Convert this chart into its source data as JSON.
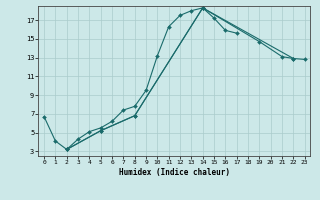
{
  "xlabel": "Humidex (Indice chaleur)",
  "bg_color": "#cce8e8",
  "grid_color": "#aacccc",
  "line_color": "#1a6b6b",
  "xlim": [
    -0.5,
    23.5
  ],
  "ylim": [
    2.5,
    18.5
  ],
  "yticks": [
    3,
    5,
    7,
    9,
    11,
    13,
    15,
    17
  ],
  "xticks": [
    0,
    1,
    2,
    3,
    4,
    5,
    6,
    7,
    8,
    9,
    10,
    11,
    12,
    13,
    14,
    15,
    16,
    17,
    18,
    19,
    20,
    21,
    22,
    23
  ],
  "s1x": [
    0,
    1,
    2,
    3,
    4,
    5,
    6,
    7,
    8,
    9,
    10,
    11,
    12,
    13,
    14,
    15,
    16,
    17
  ],
  "s1y": [
    6.7,
    4.1,
    3.2,
    4.3,
    5.1,
    5.5,
    6.2,
    7.4,
    7.8,
    9.5,
    13.2,
    16.3,
    17.5,
    18.0,
    18.3,
    17.2,
    15.9,
    15.6
  ],
  "s2x": [
    2,
    5,
    8,
    14,
    19,
    21,
    22,
    23
  ],
  "s2y": [
    3.2,
    5.2,
    6.8,
    18.3,
    14.7,
    13.1,
    12.9,
    12.8
  ],
  "s3x": [
    2,
    5,
    8,
    14,
    22
  ],
  "s3y": [
    3.2,
    5.2,
    6.8,
    18.3,
    12.9
  ],
  "xlabel_fontsize": 5.5,
  "tick_fontsize_x": 4.5,
  "tick_fontsize_y": 5.0,
  "linewidth": 0.8,
  "markersize": 2.0
}
